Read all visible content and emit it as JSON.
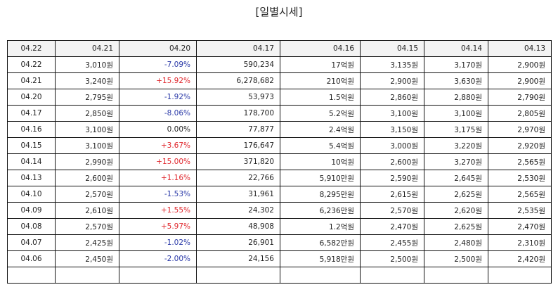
{
  "title": "[일별시세]",
  "header": [
    "04.22",
    "04.21",
    "04.20",
    "04.17",
    "04.16",
    "04.15",
    "04.14",
    "04.13"
  ],
  "rows": [
    [
      "04.22",
      "3,010원",
      "-7.09%",
      "590,234",
      "17억원",
      "3,135원",
      "3,170원",
      "2,900원"
    ],
    [
      "04.21",
      "3,240원",
      "+15.92%",
      "6,278,682",
      "210억원",
      "2,900원",
      "3,630원",
      "2,900원"
    ],
    [
      "04.20",
      "2,795원",
      "-1.92%",
      "53,973",
      "1.5억원",
      "2,860원",
      "2,880원",
      "2,790원"
    ],
    [
      "04.17",
      "2,850원",
      "-8.06%",
      "178,700",
      "5.2억원",
      "3,100원",
      "3,100원",
      "2,805원"
    ],
    [
      "04.16",
      "3,100원",
      "0.00%",
      "77,877",
      "2.4억원",
      "3,150원",
      "3,175원",
      "2,970원"
    ],
    [
      "04.15",
      "3,100원",
      "+3.67%",
      "176,647",
      "5.4억원",
      "3,000원",
      "3,220원",
      "2,920원"
    ],
    [
      "04.14",
      "2,990원",
      "+15.00%",
      "371,820",
      "10억원",
      "2,600원",
      "3,270원",
      "2,565원"
    ],
    [
      "04.13",
      "2,600원",
      "+1.16%",
      "22,766",
      "5,910만원",
      "2,590원",
      "2,645원",
      "2,530원"
    ],
    [
      "04.10",
      "2,570원",
      "-1.53%",
      "31,961",
      "8,295만원",
      "2,615원",
      "2,625원",
      "2,565원"
    ],
    [
      "04.09",
      "2,610원",
      "+1.55%",
      "24,302",
      "6,236만원",
      "2,570원",
      "2,620원",
      "2,535원"
    ],
    [
      "04.08",
      "2,570원",
      "+5.97%",
      "48,908",
      "1.2억원",
      "2,470원",
      "2,625원",
      "2,470원"
    ],
    [
      "04.07",
      "2,425원",
      "-1.02%",
      "26,901",
      "6,582만원",
      "2,455원",
      "2,480원",
      "2,310원"
    ],
    [
      "04.06",
      "2,450원",
      "-2.00%",
      "24,156",
      "5,918만원",
      "2,500원",
      "2,500원",
      "2,420원"
    ]
  ],
  "colors": {
    "up": "#e0262c",
    "down": "#2b3aa8",
    "border": "#111111",
    "header_bg": "#f3f3f3"
  }
}
